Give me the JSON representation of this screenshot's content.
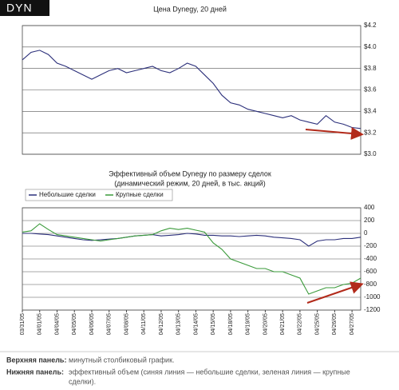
{
  "header": {
    "ticker": "DYN"
  },
  "chart_data": [
    {
      "type": "line",
      "title": "Цена Dynegy, 20 дней",
      "series": [
        {
          "color": "#2b2f7a",
          "values": [
            3.88,
            3.95,
            3.97,
            3.93,
            3.85,
            3.82,
            3.78,
            3.74,
            3.7,
            3.74,
            3.78,
            3.8,
            3.76,
            3.78,
            3.8,
            3.82,
            3.78,
            3.76,
            3.8,
            3.85,
            3.82,
            3.74,
            3.66,
            3.55,
            3.48,
            3.46,
            3.42,
            3.4,
            3.38,
            3.36,
            3.34,
            3.36,
            3.32,
            3.3,
            3.28,
            3.36,
            3.3,
            3.28,
            3.25,
            3.24
          ]
        }
      ],
      "ylim": [
        3.0,
        4.2
      ],
      "yticks": [
        {
          "value": 3.0,
          "label": "$3.0"
        },
        {
          "value": 3.2,
          "label": "$3.2"
        },
        {
          "value": 3.4,
          "label": "$3.4"
        },
        {
          "value": 3.6,
          "label": "$3.6"
        },
        {
          "value": 3.8,
          "label": "$3.8"
        },
        {
          "value": 4.0,
          "label": "$4.0"
        },
        {
          "value": 4.2,
          "label": "$4.2"
        }
      ],
      "grid": true
    },
    {
      "type": "line",
      "title": "Эффективный объем Dynegy по размеру сделок",
      "subtitle": "(динамический режим, 20 дней, в тыс. акций)",
      "categories": [
        "03/31/05",
        null,
        "04/01/05",
        null,
        "04/04/05",
        null,
        "04/05/05",
        null,
        "04/06/05",
        null,
        "04/07/05",
        null,
        "04/08/05",
        null,
        "04/11/05",
        null,
        "04/12/05",
        null,
        "04/13/05",
        null,
        "04/14/05",
        null,
        "04/15/05",
        null,
        "04/18/05",
        null,
        "04/19/05",
        null,
        "04/20/05",
        null,
        "04/21/05",
        null,
        "04/22/05",
        null,
        "04/25/05",
        null,
        "04/26/05",
        null,
        "04/27/05",
        null
      ],
      "series": [
        {
          "name": "Небольшие сделки",
          "color": "#2b2f7a",
          "values": [
            0,
            0,
            -10,
            -20,
            -40,
            -60,
            -80,
            -100,
            -110,
            -100,
            -90,
            -80,
            -60,
            -40,
            -30,
            -20,
            -40,
            -30,
            -20,
            0,
            -10,
            -30,
            -30,
            -40,
            -40,
            -50,
            -40,
            -30,
            -40,
            -60,
            -70,
            -80,
            -100,
            -200,
            -120,
            -100,
            -100,
            -80,
            -80,
            -60
          ]
        },
        {
          "name": "Крупные сделки",
          "color": "#3a9a3a",
          "values": [
            20,
            40,
            150,
            60,
            -20,
            -40,
            -60,
            -80,
            -100,
            -120,
            -100,
            -80,
            -60,
            -40,
            -30,
            -20,
            40,
            80,
            60,
            80,
            50,
            20,
            -150,
            -250,
            -400,
            -450,
            -500,
            -550,
            -550,
            -600,
            -600,
            -650,
            -700,
            -950,
            -900,
            -850,
            -850,
            -800,
            -780,
            -700
          ]
        }
      ],
      "ylim": [
        -1200,
        400
      ],
      "yticks": [
        400,
        200,
        0,
        -200,
        -400,
        -600,
        -800,
        -1000,
        -1200
      ],
      "grid": true,
      "legend": "top-left"
    }
  ],
  "notes": [
    {
      "label": "Верхняя панель:",
      "text": "минутный столбиковый график."
    },
    {
      "label": "Нижняя панель:",
      "text": "эффективный объем (синяя линия — небольшие сделки, зеленая линия — крупные",
      "text2": "сделки)."
    }
  ]
}
